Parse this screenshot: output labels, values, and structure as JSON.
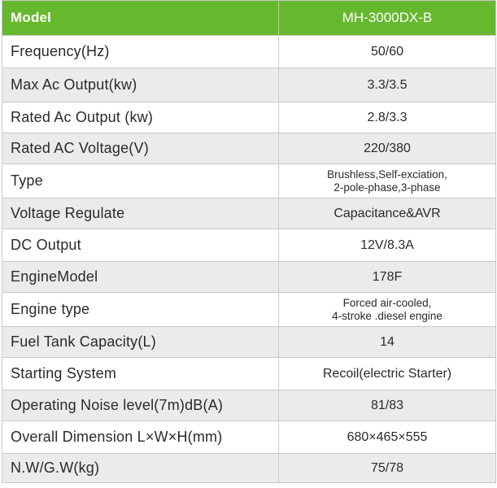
{
  "header": {
    "label": "Model",
    "value": "MH-3000DX-B"
  },
  "colors": {
    "header_bg": "#66b82e",
    "row_alt_bg": "#ebebeb",
    "border": "#c9c9c9"
  },
  "rows": [
    {
      "label": "Frequency(Hz)",
      "value": [
        "50/60"
      ]
    },
    {
      "label": "Max Ac Output(kw)",
      "value": [
        "3.3/3.5"
      ]
    },
    {
      "label": "Rated Ac Output (kw)",
      "value": [
        "2.8/3.3"
      ]
    },
    {
      "label": "Rated AC Voltage(V)",
      "value": [
        "220/380"
      ]
    },
    {
      "label": "Type",
      "value": [
        "Brushless,Self-exciation,",
        "2-pole-phase,3-phase"
      ]
    },
    {
      "label": "Voltage Regulate",
      "value": [
        "Capacitance&AVR"
      ]
    },
    {
      "label": "DC Output",
      "value": [
        "12V/8.3A"
      ]
    },
    {
      "label": "EngineModel",
      "value": [
        "178F"
      ]
    },
    {
      "label": "Engine type",
      "value": [
        "Forced air-cooled,",
        "4-stroke .diesel engine"
      ]
    },
    {
      "label": "Fuel Tank Capacity(L)",
      "value": [
        "14"
      ]
    },
    {
      "label": "Starting System",
      "value": [
        "Recoil(electric Starter)"
      ]
    },
    {
      "label": "Operating Noise level(7m)dB(A)",
      "value": [
        "81/83"
      ]
    },
    {
      "label": "Overall Dimension L×W×H(mm)",
      "value": [
        "680×465×555"
      ]
    },
    {
      "label": "N.W/G.W(kg)",
      "value": [
        "75/78"
      ]
    }
  ]
}
